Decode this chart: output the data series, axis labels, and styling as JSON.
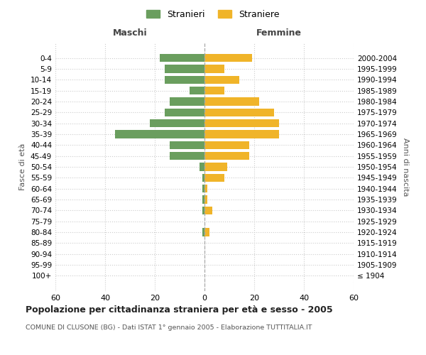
{
  "age_groups": [
    "100+",
    "95-99",
    "90-94",
    "85-89",
    "80-84",
    "75-79",
    "70-74",
    "65-69",
    "60-64",
    "55-59",
    "50-54",
    "45-49",
    "40-44",
    "35-39",
    "30-34",
    "25-29",
    "20-24",
    "15-19",
    "10-14",
    "5-9",
    "0-4"
  ],
  "birth_years": [
    "≤ 1904",
    "1905-1909",
    "1910-1914",
    "1915-1919",
    "1920-1924",
    "1925-1929",
    "1930-1934",
    "1935-1939",
    "1940-1944",
    "1945-1949",
    "1950-1954",
    "1955-1959",
    "1960-1964",
    "1965-1969",
    "1970-1974",
    "1975-1979",
    "1980-1984",
    "1985-1989",
    "1990-1994",
    "1995-1999",
    "2000-2004"
  ],
  "maschi": [
    0,
    0,
    0,
    0,
    1,
    0,
    1,
    1,
    1,
    1,
    2,
    14,
    14,
    36,
    22,
    16,
    14,
    6,
    16,
    16,
    18
  ],
  "femmine": [
    0,
    0,
    0,
    0,
    2,
    0,
    3,
    1,
    1,
    8,
    9,
    18,
    18,
    30,
    30,
    28,
    22,
    8,
    14,
    8,
    19
  ],
  "maschi_color": "#6a9e5e",
  "femmine_color": "#f0b429",
  "background_color": "#ffffff",
  "grid_color": "#cccccc",
  "title": "Popolazione per cittadinanza straniera per età e sesso - 2005",
  "subtitle": "COMUNE DI CLUSONE (BG) - Dati ISTAT 1° gennaio 2005 - Elaborazione TUTTITALIA.IT",
  "ylabel_left": "Fasce di età",
  "ylabel_right": "Anni di nascita",
  "xlabel_maschi": "Maschi",
  "xlabel_femmine": "Femmine",
  "legend_stranieri": "Stranieri",
  "legend_straniere": "Straniere",
  "xlim": 60,
  "bar_height": 0.75
}
